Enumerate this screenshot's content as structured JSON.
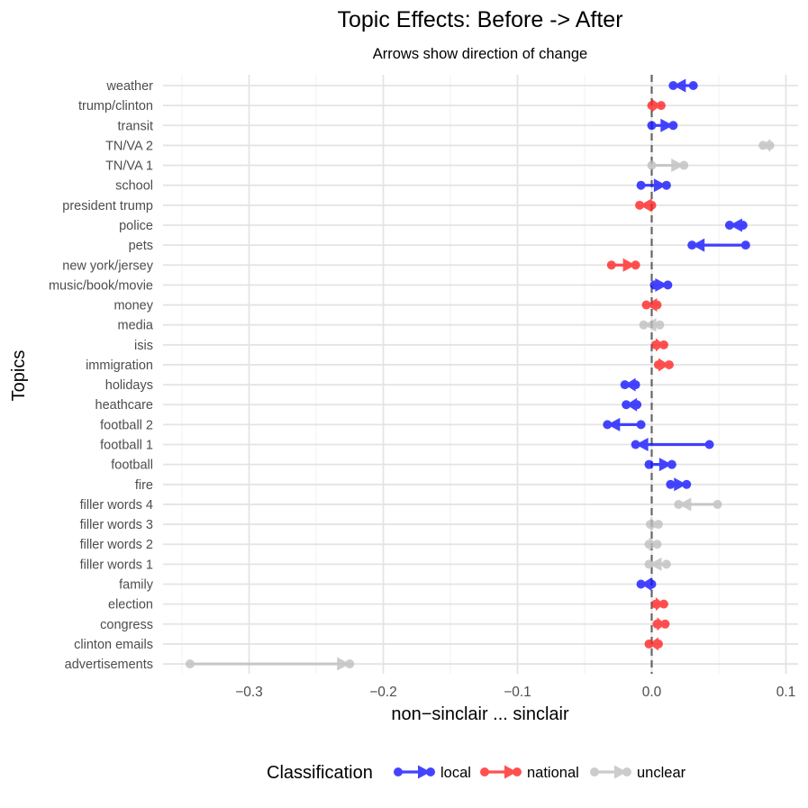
{
  "chart_data": {
    "type": "arrow",
    "title": "Topic Effects: Before -> After",
    "subtitle": "Arrows show direction of change",
    "xlabel": "non−sinclair ... sinclair",
    "ylabel": "Topics",
    "xlim": [
      -0.365,
      0.108
    ],
    "xticks": [
      -0.3,
      -0.2,
      -0.1,
      0.0,
      0.1
    ],
    "xtick_labels": [
      "−0.3",
      "−0.2",
      "−0.1",
      "0.0",
      "0.1"
    ],
    "reference_line": 0.0,
    "grid": true,
    "legend": {
      "title": "Classification",
      "position": "bottom",
      "entries": [
        {
          "name": "local",
          "color": "#1010ff"
        },
        {
          "name": "national",
          "color": "#ff2020"
        },
        {
          "name": "unclear",
          "color": "#bebebe"
        }
      ]
    },
    "data": [
      {
        "topic": "weather",
        "class": "local",
        "before": 0.031,
        "after": 0.016
      },
      {
        "topic": "trump/clinton",
        "class": "national",
        "before": 0.0,
        "after": 0.007
      },
      {
        "topic": "transit",
        "class": "local",
        "before": 0.0,
        "after": 0.016
      },
      {
        "topic": "TN/VA 2",
        "class": "unclear",
        "before": 0.088,
        "after": 0.083
      },
      {
        "topic": "TN/VA 1",
        "class": "unclear",
        "before": 0.0,
        "after": 0.024
      },
      {
        "topic": "school",
        "class": "local",
        "before": -0.008,
        "after": 0.011
      },
      {
        "topic": "president trump",
        "class": "national",
        "before": 0.0,
        "after": -0.009
      },
      {
        "topic": "police",
        "class": "local",
        "before": 0.068,
        "after": 0.058
      },
      {
        "topic": "pets",
        "class": "local",
        "before": 0.07,
        "after": 0.03
      },
      {
        "topic": "new york/jersey",
        "class": "national",
        "before": -0.03,
        "after": -0.012
      },
      {
        "topic": "music/book/movie",
        "class": "local",
        "before": 0.002,
        "after": 0.012
      },
      {
        "topic": "money",
        "class": "national",
        "before": 0.004,
        "after": -0.004
      },
      {
        "topic": "media",
        "class": "unclear",
        "before": 0.006,
        "after": -0.006
      },
      {
        "topic": "isis",
        "class": "national",
        "before": 0.003,
        "after": 0.009
      },
      {
        "topic": "immigration",
        "class": "national",
        "before": 0.005,
        "after": 0.013
      },
      {
        "topic": "holidays",
        "class": "local",
        "before": -0.012,
        "after": -0.02
      },
      {
        "topic": "heathcare",
        "class": "local",
        "before": -0.011,
        "after": -0.019
      },
      {
        "topic": "football 2",
        "class": "local",
        "before": -0.008,
        "after": -0.033
      },
      {
        "topic": "football 1",
        "class": "local",
        "before": 0.043,
        "after": -0.012
      },
      {
        "topic": "football",
        "class": "local",
        "before": -0.002,
        "after": 0.015
      },
      {
        "topic": "fire",
        "class": "local",
        "before": 0.014,
        "after": 0.026
      },
      {
        "topic": "filler words 4",
        "class": "unclear",
        "before": 0.049,
        "after": 0.02
      },
      {
        "topic": "filler words 3",
        "class": "unclear",
        "before": -0.001,
        "after": 0.005
      },
      {
        "topic": "filler words 2",
        "class": "unclear",
        "before": -0.002,
        "after": 0.004
      },
      {
        "topic": "filler words 1",
        "class": "unclear",
        "before": 0.011,
        "after": -0.002
      },
      {
        "topic": "family",
        "class": "local",
        "before": 0.0,
        "after": -0.008
      },
      {
        "topic": "election",
        "class": "national",
        "before": 0.003,
        "after": 0.009
      },
      {
        "topic": "congress",
        "class": "national",
        "before": 0.004,
        "after": 0.01
      },
      {
        "topic": "clinton emails",
        "class": "national",
        "before": 0.005,
        "after": -0.002
      },
      {
        "topic": "advertisements",
        "class": "unclear",
        "before": -0.344,
        "after": -0.225
      }
    ]
  }
}
